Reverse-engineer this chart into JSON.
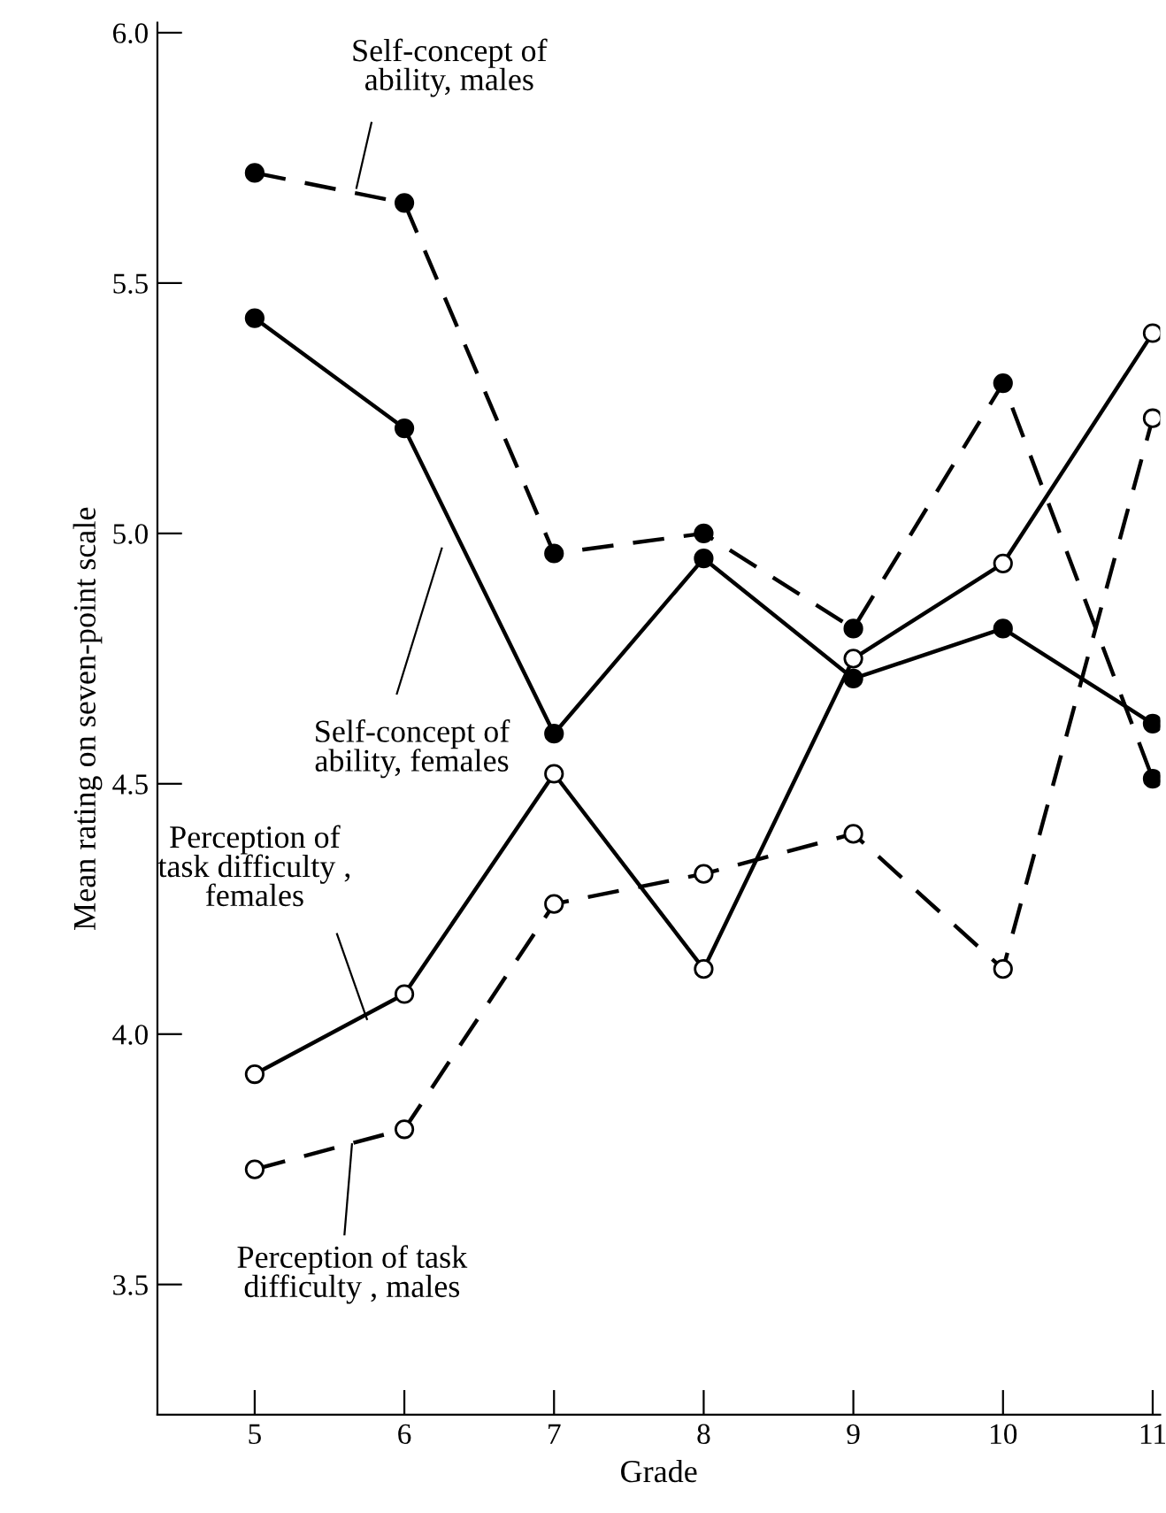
{
  "chart_data": {
    "type": "line",
    "xlabel": "Grade",
    "ylabel": "Mean rating on seven-point scale",
    "x": [
      5,
      6,
      7,
      8,
      9,
      10,
      11
    ],
    "series": [
      {
        "name": "Self-concept of\nability, males",
        "color": "#000000",
        "line_style": "dashed",
        "marker": "circle",
        "values": [
          5.72,
          5.66,
          4.96,
          5.0,
          4.81,
          5.3,
          4.51
        ]
      },
      {
        "name": "Self-concept of\nability, females",
        "color": "#000000",
        "line_style": "solid",
        "marker": "circle",
        "values": [
          5.43,
          5.21,
          4.6,
          4.95,
          4.71,
          4.81,
          4.62
        ]
      },
      {
        "name": "Perception of\ntask difficulty ,\nfemales",
        "color": "#000000",
        "line_style": "solid",
        "marker": "circle-open",
        "values": [
          3.92,
          4.08,
          4.52,
          4.13,
          4.75,
          4.94,
          5.4
        ]
      },
      {
        "name": "Perception of task\ndifficulty , males",
        "color": "#000000",
        "line_style": "dashed",
        "marker": "circle-open",
        "values": [
          3.73,
          3.81,
          4.26,
          4.32,
          4.4,
          4.13,
          5.23
        ]
      }
    ],
    "xlim": [
      4.35,
      11.05
    ],
    "ylim": [
      3.24,
      6.02
    ],
    "xticks": [
      5,
      6,
      7,
      8,
      9,
      10,
      11
    ],
    "yticks": [
      {
        "value": 3.5,
        "label": "3.5"
      },
      {
        "value": 4.0,
        "label": "4.0"
      },
      {
        "value": 4.5,
        "label": "4.5"
      },
      {
        "value": 5.0,
        "label": "5.0"
      },
      {
        "value": 5.5,
        "label": "5.5"
      },
      {
        "value": 6.0,
        "label": "6.0"
      }
    ],
    "grid": false,
    "legend": false
  }
}
